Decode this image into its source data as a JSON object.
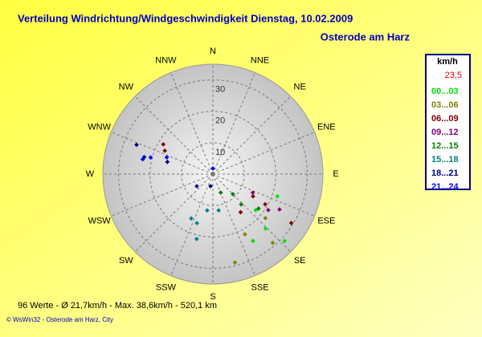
{
  "chart_data": {
    "type": "polar-scatter",
    "title": "Verteilung Windrichtung/Windgeschwindigkeit  Dienstag, 10.02.2009",
    "subtitle": "Osterode am Harz",
    "legend_title": "km/h",
    "current_value": "23,5",
    "summary": "96 Werte   -   Ø 21,7km/h  -  Max. 38,6km/h  -   520,1 km",
    "footer": "© WsWin32  -  Osterode am Harz, City",
    "rlim": [
      0,
      35
    ],
    "rticks": [
      10,
      20,
      30
    ],
    "xticks": [
      {
        "value": 0,
        "label": "N"
      },
      {
        "value": 22.5,
        "label": "NNE"
      },
      {
        "value": 45,
        "label": "NE"
      },
      {
        "value": 67.5,
        "label": "ENE"
      },
      {
        "value": 90,
        "label": "E"
      },
      {
        "value": 112.5,
        "label": "ESE"
      },
      {
        "value": 135,
        "label": "SE"
      },
      {
        "value": 157.5,
        "label": "SSE"
      },
      {
        "value": 180,
        "label": "S"
      },
      {
        "value": 202.5,
        "label": "SSW"
      },
      {
        "value": 225,
        "label": "SW"
      },
      {
        "value": 247.5,
        "label": "WSW"
      },
      {
        "value": 270,
        "label": "W"
      },
      {
        "value": 292.5,
        "label": "WNW"
      },
      {
        "value": 315,
        "label": "NW"
      },
      {
        "value": 337.5,
        "label": "NNW"
      }
    ],
    "series": [
      {
        "name": "00...03",
        "color": "#00e000",
        "direction": [
          109,
          133,
          149,
          136,
          130
        ],
        "values": [
          21.7,
          31.2,
          24.8,
          24.1,
          17.8
        ]
      },
      {
        "name": "03...06",
        "color": "#808000",
        "direction": [
          166,
          152,
          130,
          139
        ],
        "values": [
          29,
          21.7,
          21.8,
          29
        ]
      },
      {
        "name": "06...09",
        "color": "#800000",
        "direction": [
          144,
          119,
          120,
          122,
          301,
          296
        ],
        "values": [
          15,
          14.6,
          19.2,
          29.4,
          18.4,
          17
        ]
      },
      {
        "name": "09...12",
        "color": "#800080",
        "direction": [
          115,
          123,
          118
        ],
        "values": [
          14,
          21,
          24
        ]
      },
      {
        "name": "12...15",
        "color": "#008000",
        "direction": [
          157,
          135,
          137,
          127
        ],
        "values": [
          6.4,
          9,
          13.2,
          18.2
        ]
      },
      {
        "name": "15...18",
        "color": "#008080",
        "direction": [
          198,
          206,
          194,
          189,
          171
        ],
        "values": [
          16.4,
          15.7,
          21.3,
          11.7,
          11.7
        ]
      },
      {
        "name": "18...21",
        "color": "#000080",
        "direction": [
          233,
          285,
          284,
          291,
          191
        ],
        "values": [
          6.4,
          15,
          22.5,
          26,
          3.9
        ]
      },
      {
        "name": "21...24",
        "color": "#0000ff",
        "direction": [
          282,
          285,
          0,
          290
        ],
        "values": [
          22.8,
          20.5,
          1.8,
          15.6
        ]
      }
    ]
  }
}
